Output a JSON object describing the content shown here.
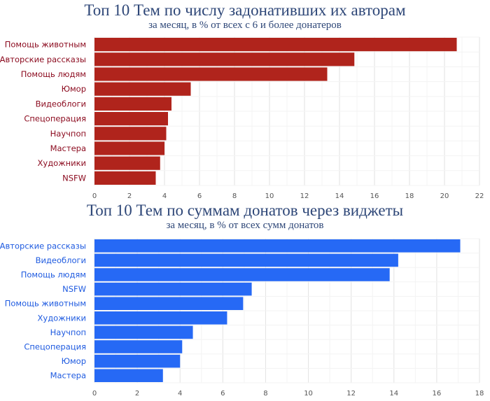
{
  "chart_data": [
    {
      "type": "bar",
      "orientation": "horizontal",
      "title": "Топ 10 Тем по числу задонативших их авторам",
      "subtitle": "за месяц, в % от всех с 6 и более донатеров",
      "categories": [
        "Помощь животным",
        "Авторские рассказы",
        "Помощь людям",
        "Юмор",
        "Видеоблоги",
        "Спецоперация",
        "Научпоп",
        "Мастера",
        "Художники",
        "NSFW"
      ],
      "values": [
        20.7,
        14.85,
        13.3,
        5.5,
        4.4,
        4.2,
        4.1,
        4.0,
        3.75,
        3.5
      ],
      "xlim": [
        0,
        22
      ],
      "xticks": [
        0,
        2,
        4,
        6,
        8,
        10,
        12,
        14,
        16,
        18,
        20,
        22
      ],
      "grid": true,
      "bar_color": "#b0241c",
      "label_color": "#8b0a1e"
    },
    {
      "type": "bar",
      "orientation": "horizontal",
      "title": "Топ 10 Тем по суммам донатов через виджеты",
      "subtitle": "за месяц, в % от всех сумм донатов",
      "categories": [
        "Авторские рассказы",
        "Видеоблоги",
        "Помощь людям",
        "NSFW",
        "Помощь животным",
        "Художники",
        "Научпоп",
        "Спецоперация",
        "Юмор",
        "Мастера"
      ],
      "values": [
        17.1,
        14.2,
        13.8,
        7.35,
        6.95,
        6.2,
        4.6,
        4.1,
        4.0,
        3.2
      ],
      "xlim": [
        0,
        18
      ],
      "xticks": [
        0,
        2,
        4,
        6,
        8,
        10,
        12,
        14,
        16,
        18
      ],
      "grid": true,
      "bar_color": "#2669f5",
      "label_color": "#1f5be0"
    }
  ]
}
